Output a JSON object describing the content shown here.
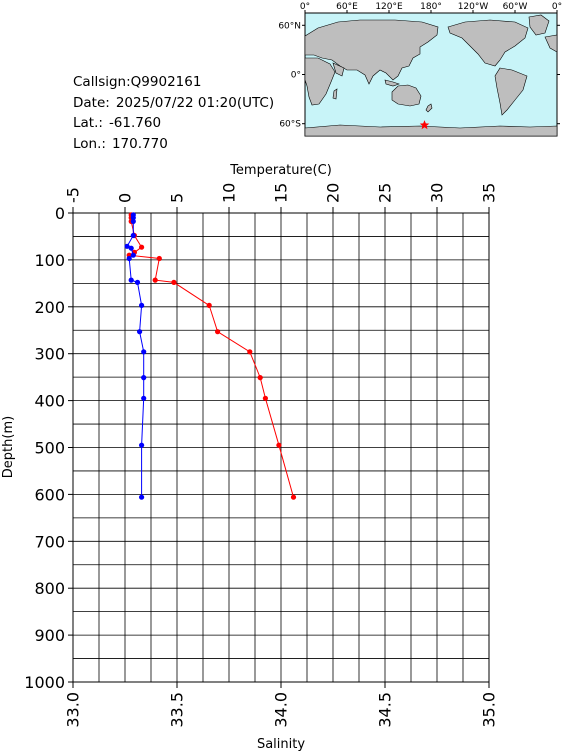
{
  "station": {
    "callsign_label": "Callsign:",
    "callsign": "Q9902161",
    "date_label": "Date:",
    "date": "2025/07/22 01:20(UTC)",
    "lat_label": "Lat.:",
    "lat": "-61.760",
    "lon_label": "Lon.:",
    "lon": "170.770"
  },
  "map": {
    "top_labels": [
      "0°",
      "60°E",
      "120°E",
      "180°",
      "120°W",
      "60°W",
      "0°"
    ],
    "side_labels": [
      "60°N",
      "0°",
      "60°S"
    ],
    "ocean_color": "#c8f4f8",
    "land_color": "#bebebe",
    "marker_color": "#ff0000",
    "marker_lon": 170.77,
    "marker_lat": -61.76
  },
  "chart_data": {
    "type": "line",
    "title": "",
    "xlabel_top": "Temperature(C)",
    "xlabel_bottom": "Salinity",
    "ylabel": "Depth(m)",
    "temperature_range": [
      -5,
      35
    ],
    "temperature_ticks": [
      "-5",
      "0",
      "5",
      "10",
      "15",
      "20",
      "25",
      "30",
      "35"
    ],
    "salinity_range": [
      33.0,
      35.0
    ],
    "salinity_ticks": [
      "33.0",
      "33.5",
      "34.0",
      "34.5",
      "35.0"
    ],
    "depth_range": [
      0,
      1000
    ],
    "depth_ticks": [
      "0",
      "100",
      "200",
      "300",
      "400",
      "500",
      "600",
      "700",
      "800",
      "900",
      "1000"
    ],
    "grid": true,
    "series": [
      {
        "color": "#ff0000",
        "axis": "temperature",
        "points": [
          {
            "t": 0.6,
            "d": 4
          },
          {
            "t": 0.6,
            "d": 10
          },
          {
            "t": 0.6,
            "d": 18
          },
          {
            "t": 0.9,
            "d": 48
          },
          {
            "t": 1.6,
            "d": 73
          },
          {
            "t": 0.9,
            "d": 84
          },
          {
            "t": 0.4,
            "d": 90
          },
          {
            "t": 3.3,
            "d": 97
          },
          {
            "t": 2.9,
            "d": 143
          },
          {
            "t": 4.7,
            "d": 148
          },
          {
            "t": 8.1,
            "d": 197
          },
          {
            "t": 8.9,
            "d": 253
          },
          {
            "t": 12.0,
            "d": 296
          },
          {
            "t": 13.0,
            "d": 351
          },
          {
            "t": 13.5,
            "d": 395
          },
          {
            "t": 14.8,
            "d": 495
          },
          {
            "t": 16.2,
            "d": 606
          }
        ]
      },
      {
        "color": "#0000ff",
        "axis": "salinity",
        "points": [
          {
            "s": 33.29,
            "d": 4
          },
          {
            "s": 33.29,
            "d": 10
          },
          {
            "s": 33.29,
            "d": 18
          },
          {
            "s": 33.29,
            "d": 48
          },
          {
            "s": 33.26,
            "d": 71
          },
          {
            "s": 33.28,
            "d": 75
          },
          {
            "s": 33.29,
            "d": 90
          },
          {
            "s": 33.27,
            "d": 97
          },
          {
            "s": 33.28,
            "d": 143
          },
          {
            "s": 33.31,
            "d": 148
          },
          {
            "s": 33.33,
            "d": 197
          },
          {
            "s": 33.32,
            "d": 253
          },
          {
            "s": 33.34,
            "d": 296
          },
          {
            "s": 33.34,
            "d": 351
          },
          {
            "s": 33.34,
            "d": 395
          },
          {
            "s": 33.33,
            "d": 495
          },
          {
            "s": 33.33,
            "d": 606
          }
        ]
      }
    ]
  }
}
